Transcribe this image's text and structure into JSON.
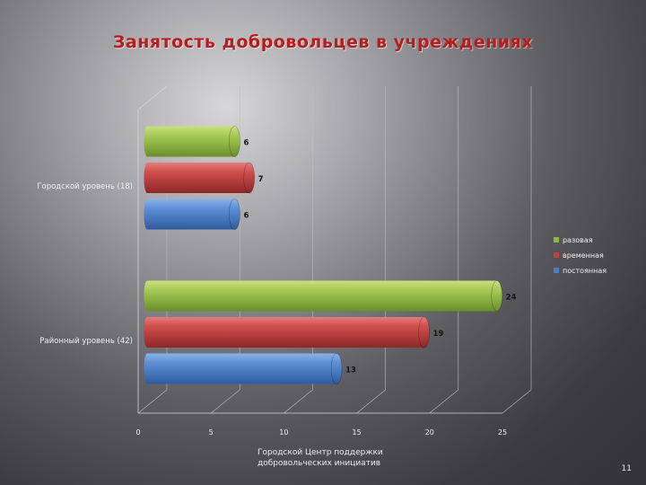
{
  "slide": {
    "title": "Занятость добровольцев в учреждениях",
    "footer_line1": "Городской Центр поддержки",
    "footer_line2": "добровольческих инициатив",
    "page_number": "11"
  },
  "chart_data": {
    "type": "bar",
    "orientation": "horizontal",
    "style": "3d-cylinder",
    "title": "",
    "xlabel": "",
    "ylabel": "",
    "categories": [
      "Городской уровень (18)",
      "Районный уровень (42)"
    ],
    "series": [
      {
        "name": "разовая",
        "values": [
          6,
          24
        ],
        "color": "#8dba3c"
      },
      {
        "name": "временная",
        "values": [
          7,
          19
        ],
        "color": "#c2403f"
      },
      {
        "name": "постоянная",
        "values": [
          6,
          13
        ],
        "color": "#4a7ec7"
      }
    ],
    "xlim": [
      0,
      25
    ],
    "xticks": [
      0,
      5,
      10,
      15,
      20,
      25
    ],
    "grid": true,
    "legend": "right",
    "data_labels": true
  }
}
